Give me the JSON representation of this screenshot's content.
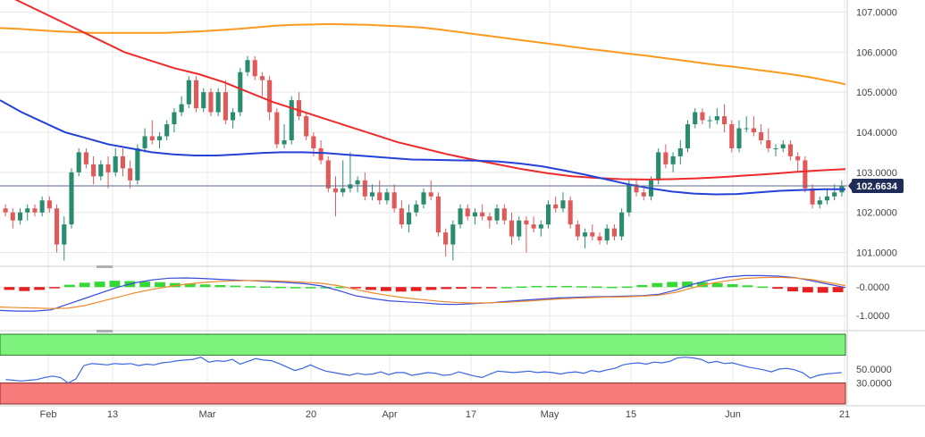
{
  "colors": {
    "up_candle": "#2a8c6f",
    "down_candle": "#e05a5a",
    "ma_fast": "#2443d6",
    "ma_mid": "#ee2a2a",
    "ma_slow": "#fb9a1e",
    "macd_pos": "#34d934",
    "macd_neg": "#e62020",
    "macd_line": "#3a4bdc",
    "signal_line": "#f08a2a",
    "rsi_line": "#3a66e0",
    "rsi_overbought": "#7df27d",
    "rsi_oversold": "#f77b7b",
    "grid": "#e8e8e8",
    "axis_text": "#444444",
    "price_badge": "#1e2c57"
  },
  "chart_data": [
    {
      "type": "candlestick",
      "panel": "price",
      "ylim": [
        100.7,
        107.3
      ],
      "y_ticks": [
        "101.0000",
        "102.0000",
        "103.0000",
        "104.0000",
        "105.0000",
        "106.0000",
        "107.0000"
      ],
      "current_price": "102.6634",
      "candles": [
        [
          102.1,
          102.2,
          101.9,
          102.0
        ],
        [
          102.0,
          102.1,
          101.6,
          101.8
        ],
        [
          101.8,
          102.1,
          101.7,
          102.0
        ],
        [
          102.0,
          102.2,
          101.8,
          102.1
        ],
        [
          102.1,
          102.2,
          101.9,
          102.0
        ],
        [
          102.0,
          102.4,
          101.9,
          102.3
        ],
        [
          102.3,
          102.4,
          102.0,
          102.1
        ],
        [
          102.1,
          102.2,
          101.0,
          101.2
        ],
        [
          101.2,
          101.9,
          100.8,
          101.7
        ],
        [
          101.7,
          103.1,
          101.6,
          103.0
        ],
        [
          103.0,
          103.6,
          102.9,
          103.5
        ],
        [
          103.5,
          103.6,
          103.1,
          103.2
        ],
        [
          103.2,
          103.4,
          102.7,
          102.9
        ],
        [
          102.9,
          103.3,
          102.8,
          103.2
        ],
        [
          103.2,
          103.4,
          102.6,
          103.0
        ],
        [
          103.0,
          103.6,
          102.9,
          103.4
        ],
        [
          103.4,
          103.6,
          102.9,
          103.1
        ],
        [
          103.1,
          103.3,
          102.6,
          102.8
        ],
        [
          102.8,
          103.7,
          102.7,
          103.6
        ],
        [
          103.6,
          104.1,
          103.5,
          103.9
        ],
        [
          103.9,
          104.3,
          103.7,
          103.8
        ],
        [
          103.8,
          104.0,
          103.6,
          103.9
        ],
        [
          103.9,
          104.3,
          103.8,
          104.2
        ],
        [
          104.2,
          104.6,
          104.0,
          104.5
        ],
        [
          104.5,
          104.9,
          104.4,
          104.7
        ],
        [
          104.7,
          105.4,
          104.6,
          105.3
        ],
        [
          105.3,
          105.4,
          104.5,
          104.6
        ],
        [
          104.6,
          105.1,
          104.5,
          105.0
        ],
        [
          105.0,
          105.1,
          104.4,
          104.5
        ],
        [
          104.5,
          105.1,
          104.4,
          105.0
        ],
        [
          105.0,
          105.3,
          104.2,
          104.3
        ],
        [
          104.3,
          104.6,
          104.1,
          104.5
        ],
        [
          104.5,
          105.6,
          104.4,
          105.5
        ],
        [
          105.5,
          105.9,
          105.4,
          105.8
        ],
        [
          105.8,
          105.9,
          105.3,
          105.4
        ],
        [
          105.4,
          105.5,
          104.9,
          105.3
        ],
        [
          105.3,
          105.4,
          104.3,
          104.5
        ],
        [
          104.5,
          104.6,
          103.6,
          103.7
        ],
        [
          103.7,
          104.2,
          103.6,
          103.8
        ],
        [
          103.8,
          104.9,
          103.7,
          104.8
        ],
        [
          104.8,
          105.0,
          104.3,
          104.4
        ],
        [
          104.4,
          104.5,
          103.8,
          103.9
        ],
        [
          103.9,
          104.0,
          103.4,
          103.6
        ],
        [
          103.6,
          103.8,
          103.2,
          103.3
        ],
        [
          103.3,
          103.4,
          102.5,
          102.6
        ],
        [
          102.6,
          102.9,
          101.9,
          102.5
        ],
        [
          102.5,
          103.3,
          102.4,
          102.6
        ],
        [
          102.6,
          103.5,
          102.5,
          102.7
        ],
        [
          102.7,
          102.9,
          102.5,
          102.8
        ],
        [
          102.8,
          103.0,
          102.3,
          102.4
        ],
        [
          102.4,
          102.7,
          102.3,
          102.5
        ],
        [
          102.5,
          102.8,
          102.2,
          102.3
        ],
        [
          102.3,
          102.6,
          102.2,
          102.5
        ],
        [
          102.5,
          102.7,
          102.0,
          102.1
        ],
        [
          102.1,
          102.3,
          101.6,
          101.7
        ],
        [
          101.7,
          102.2,
          101.5,
          102.0
        ],
        [
          102.0,
          102.3,
          101.9,
          102.2
        ],
        [
          102.2,
          102.6,
          102.1,
          102.5
        ],
        [
          102.5,
          102.8,
          102.3,
          102.4
        ],
        [
          102.4,
          102.5,
          101.4,
          101.5
        ],
        [
          101.5,
          101.6,
          100.9,
          101.2
        ],
        [
          101.2,
          101.8,
          100.8,
          101.7
        ],
        [
          101.7,
          102.2,
          101.6,
          102.1
        ],
        [
          102.1,
          102.2,
          101.8,
          101.9
        ],
        [
          101.9,
          102.1,
          101.7,
          102.0
        ],
        [
          102.0,
          102.2,
          101.8,
          101.9
        ],
        [
          101.9,
          102.0,
          101.6,
          101.8
        ],
        [
          101.8,
          102.2,
          101.7,
          102.1
        ],
        [
          102.1,
          102.2,
          101.7,
          101.8
        ],
        [
          101.8,
          102.0,
          101.2,
          101.4
        ],
        [
          101.4,
          101.9,
          101.3,
          101.8
        ],
        [
          101.8,
          101.9,
          101.0,
          101.7
        ],
        [
          101.7,
          101.9,
          101.5,
          101.6
        ],
        [
          101.6,
          101.8,
          101.4,
          101.7
        ],
        [
          101.7,
          102.3,
          101.6,
          102.2
        ],
        [
          102.2,
          102.4,
          102.0,
          102.1
        ],
        [
          102.1,
          102.5,
          102.0,
          102.3
        ],
        [
          102.3,
          102.4,
          101.6,
          101.7
        ],
        [
          101.7,
          101.8,
          101.3,
          101.4
        ],
        [
          101.4,
          101.6,
          101.1,
          101.5
        ],
        [
          101.5,
          101.7,
          101.3,
          101.4
        ],
        [
          101.4,
          101.5,
          101.2,
          101.3
        ],
        [
          101.3,
          101.7,
          101.2,
          101.6
        ],
        [
          101.6,
          101.7,
          101.3,
          101.4
        ],
        [
          101.4,
          102.1,
          101.3,
          102.0
        ],
        [
          102.0,
          102.8,
          101.9,
          102.7
        ],
        [
          102.7,
          102.8,
          102.4,
          102.5
        ],
        [
          102.5,
          102.6,
          102.3,
          102.4
        ],
        [
          102.4,
          102.9,
          102.3,
          102.8
        ],
        [
          102.8,
          103.6,
          102.7,
          103.5
        ],
        [
          103.5,
          103.7,
          103.1,
          103.2
        ],
        [
          103.2,
          103.5,
          103.0,
          103.4
        ],
        [
          103.4,
          103.8,
          103.2,
          103.6
        ],
        [
          103.6,
          104.3,
          103.5,
          104.2
        ],
        [
          104.2,
          104.6,
          104.1,
          104.5
        ],
        [
          104.5,
          104.6,
          104.2,
          104.3
        ],
        [
          104.3,
          104.4,
          104.1,
          104.3
        ],
        [
          104.3,
          104.6,
          104.2,
          104.4
        ],
        [
          104.4,
          104.7,
          104.0,
          104.2
        ],
        [
          104.2,
          104.3,
          103.5,
          103.6
        ],
        [
          103.6,
          104.3,
          103.5,
          104.1
        ],
        [
          104.1,
          104.4,
          104.0,
          104.1
        ],
        [
          104.1,
          104.4,
          103.9,
          104.0
        ],
        [
          104.0,
          104.2,
          103.7,
          103.8
        ],
        [
          103.8,
          104.1,
          103.5,
          103.6
        ],
        [
          103.6,
          103.7,
          103.4,
          103.6
        ],
        [
          103.6,
          103.8,
          103.5,
          103.7
        ],
        [
          103.7,
          103.8,
          103.3,
          103.4
        ],
        [
          103.4,
          103.5,
          103.0,
          103.3
        ],
        [
          103.3,
          103.4,
          102.5,
          102.6
        ],
        [
          102.6,
          102.7,
          102.1,
          102.2
        ],
        [
          102.2,
          102.4,
          102.1,
          102.3
        ],
        [
          102.3,
          102.6,
          102.2,
          102.4
        ],
        [
          102.4,
          102.7,
          102.3,
          102.5
        ],
        [
          102.5,
          102.8,
          102.4,
          102.66
        ]
      ],
      "moving_averages": [
        {
          "color_key": "ma_slow",
          "values": [
            106.6,
            106.58,
            106.55,
            106.52,
            106.5,
            106.48,
            106.48,
            106.48,
            106.48,
            106.48,
            106.5,
            106.52,
            106.55,
            106.58,
            106.62,
            106.66,
            106.68,
            106.69,
            106.7,
            106.69,
            106.68,
            106.66,
            106.64,
            106.61,
            106.56,
            106.5,
            106.44,
            106.38,
            106.32,
            106.26,
            106.2,
            106.14,
            106.08,
            106.03,
            105.97,
            105.92,
            105.86,
            105.8,
            105.74,
            105.68,
            105.63,
            105.57,
            105.51,
            105.45,
            105.38,
            105.29,
            105.2
          ]
        },
        {
          "color_key": "ma_mid",
          "values": [
            107.5,
            107.2,
            106.9,
            106.6,
            106.3,
            106.0,
            105.8,
            105.6,
            105.45,
            105.25,
            105.0,
            104.75,
            104.55,
            104.35,
            104.15,
            103.95,
            103.75,
            103.6,
            103.45,
            103.32,
            103.2,
            103.08,
            102.98,
            102.9,
            102.86,
            102.83,
            102.82,
            102.83,
            102.85,
            102.88,
            102.92,
            102.96,
            103.01,
            103.05,
            103.08
          ]
        },
        {
          "color_key": "ma_fast",
          "values": [
            104.8,
            104.5,
            104.25,
            104.0,
            103.85,
            103.7,
            103.6,
            103.5,
            103.45,
            103.42,
            103.42,
            103.45,
            103.48,
            103.5,
            103.5,
            103.48,
            103.44,
            103.4,
            103.36,
            103.32,
            103.31,
            103.3,
            103.29,
            103.27,
            103.22,
            103.15,
            103.05,
            102.94,
            102.82,
            102.7,
            102.6,
            102.52,
            102.47,
            102.45,
            102.46,
            102.5,
            102.54,
            102.56,
            102.58,
            102.58
          ]
        }
      ],
      "x_axis_labels": [
        "Feb",
        "13",
        "Mar",
        "20",
        "Apr",
        "17",
        "May",
        "15",
        "Jun",
        "21"
      ]
    },
    {
      "type": "macd",
      "panel": "macd",
      "ylim": [
        -1.4,
        0.6
      ],
      "y_ticks": [
        "-0.0000",
        "-1.0000"
      ],
      "histogram": [
        -0.1,
        -0.14,
        -0.1,
        -0.02,
        0.08,
        0.15,
        0.19,
        0.22,
        0.21,
        0.19,
        0.17,
        0.14,
        0.12,
        0.09,
        0.07,
        0.05,
        0.03,
        0.02,
        0.01,
        0.0,
        0.0,
        0.0,
        0.01,
        -0.03,
        -0.1,
        -0.14,
        -0.16,
        -0.14,
        -0.1,
        -0.07,
        -0.06,
        -0.04,
        -0.02,
        0.0,
        0.02,
        0.04,
        0.04,
        0.04,
        0.03,
        0.02,
        0.01,
        0.02,
        0.07,
        0.14,
        0.18,
        0.19,
        0.17,
        0.14,
        0.1,
        0.06,
        0.02,
        -0.06,
        -0.15,
        -0.19,
        -0.2,
        -0.18
      ],
      "macd_line": [
        -0.82,
        -0.84,
        -0.84,
        -0.8,
        -0.6,
        -0.4,
        -0.2,
        0.0,
        0.15,
        0.25,
        0.31,
        0.32,
        0.3,
        0.27,
        0.24,
        0.22,
        0.19,
        0.16,
        0.12,
        0.04,
        -0.12,
        -0.3,
        -0.4,
        -0.48,
        -0.52,
        -0.55,
        -0.6,
        -0.61,
        -0.58,
        -0.55,
        -0.5,
        -0.46,
        -0.42,
        -0.38,
        -0.36,
        -0.34,
        -0.33,
        -0.32,
        -0.3,
        -0.25,
        -0.1,
        0.1,
        0.25,
        0.35,
        0.4,
        0.4,
        0.38,
        0.33,
        0.22,
        0.1,
        -0.02
      ],
      "signal_line": [
        -0.7,
        -0.72,
        -0.73,
        -0.75,
        -0.74,
        -0.65,
        -0.5,
        -0.35,
        -0.2,
        -0.08,
        0.02,
        0.1,
        0.16,
        0.2,
        0.22,
        0.23,
        0.22,
        0.2,
        0.17,
        0.13,
        0.05,
        -0.08,
        -0.2,
        -0.3,
        -0.38,
        -0.44,
        -0.5,
        -0.54,
        -0.56,
        -0.55,
        -0.53,
        -0.5,
        -0.46,
        -0.42,
        -0.39,
        -0.37,
        -0.35,
        -0.34,
        -0.32,
        -0.28,
        -0.18,
        -0.02,
        0.12,
        0.22,
        0.3,
        0.33,
        0.34,
        0.32,
        0.26,
        0.16,
        0.05
      ]
    },
    {
      "type": "rsi",
      "panel": "rsi",
      "ylim": [
        0,
        100
      ],
      "y_ticks": [
        "50.0000",
        "30.0000"
      ],
      "overbought": 70,
      "oversold": 30,
      "values": [
        35,
        34,
        33,
        34,
        35,
        38,
        40,
        38,
        30,
        36,
        55,
        58,
        57,
        56,
        58,
        57,
        58,
        55,
        57,
        56,
        59,
        60,
        62,
        63,
        64,
        67,
        60,
        62,
        61,
        64,
        57,
        61,
        65,
        63,
        62,
        58,
        53,
        48,
        51,
        56,
        51,
        47,
        45,
        43,
        41,
        44,
        42,
        43,
        46,
        42,
        45,
        45,
        41,
        43,
        45,
        44,
        41,
        42,
        46,
        43,
        40,
        38,
        43,
        47,
        46,
        45,
        46,
        47,
        45,
        46,
        45,
        43,
        45,
        46,
        44,
        48,
        46,
        49,
        51,
        56,
        58,
        59,
        57,
        60,
        59,
        61,
        66,
        67,
        66,
        64,
        59,
        61,
        58,
        59,
        56,
        53,
        51,
        49,
        46,
        50,
        51,
        49,
        45,
        37,
        41,
        43,
        44,
        45
      ]
    }
  ]
}
